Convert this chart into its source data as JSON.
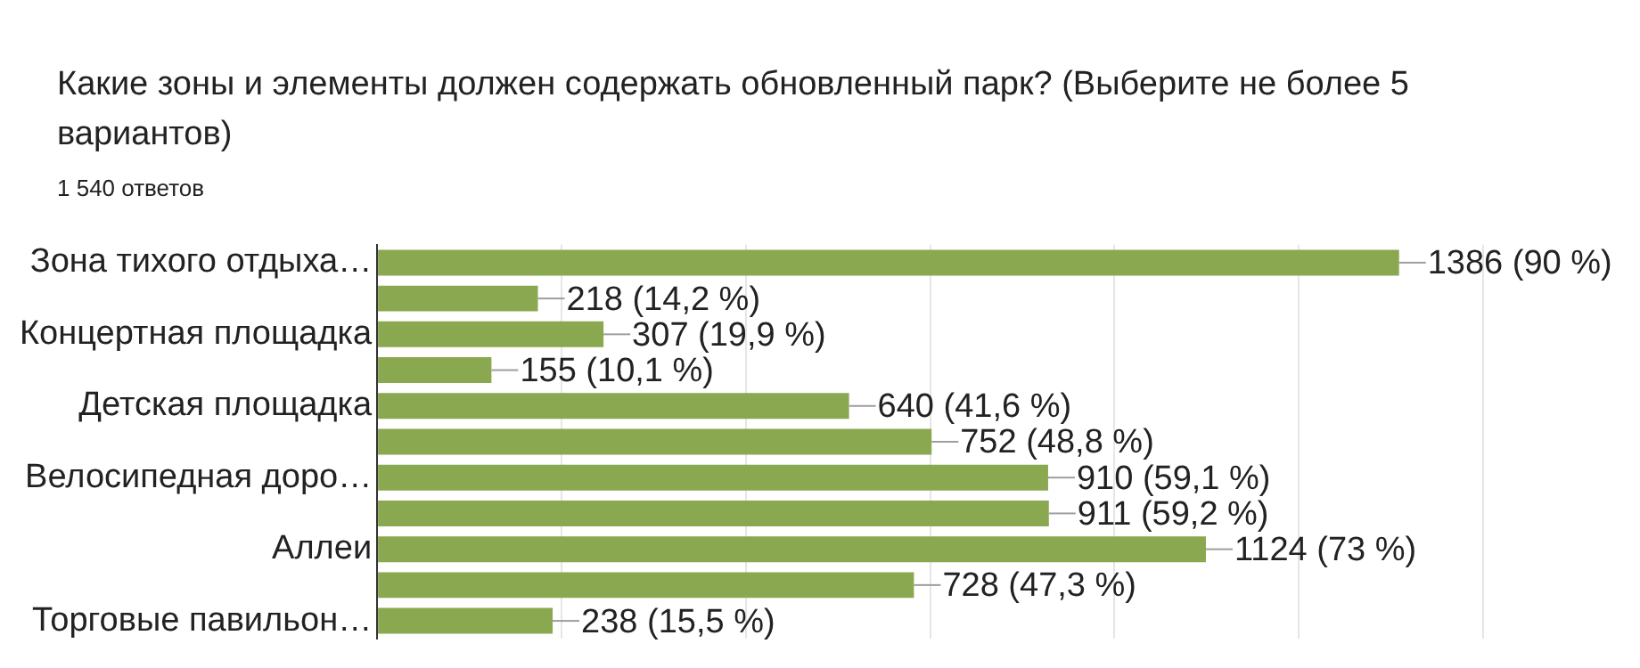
{
  "chart_data": {
    "type": "bar",
    "orientation": "horizontal",
    "title": "Какие зоны и элементы должен содержать обновленный парк? (Выберите не более 5 вариантов)",
    "subtitle": "1 540 ответов",
    "categories": [
      "Зона тихого отдыха…",
      null,
      "Концертная площадка",
      null,
      "Детская площадка",
      null,
      "Велосипедная доро…",
      null,
      "Аллеи",
      null,
      "Торговые павильон…"
    ],
    "values": [
      1386,
      218,
      307,
      155,
      640,
      752,
      910,
      911,
      1124,
      728,
      238
    ],
    "value_labels": [
      "1386 (90 %)",
      "218 (14,2 %)",
      "307 (19,9 %)",
      "155 (10,1 %)",
      "640 (41,6 %)",
      "752 (48,8 %)",
      "910 (59,1 %)",
      "911 (59,2 %)",
      "1124 (73 %)",
      "728 (47,3 %)",
      "238 (15,5 %)"
    ],
    "color": "#8aa84f",
    "xlim": [
      0,
      1500
    ],
    "xticks": [
      {
        "value": 0,
        "label": null
      },
      {
        "value": 250,
        "label": null
      },
      {
        "value": 500,
        "label": null
      },
      {
        "value": 750,
        "label": null
      },
      {
        "value": 1000,
        "label": null
      },
      {
        "value": 1250,
        "label": null
      },
      {
        "value": 1500,
        "label": null
      }
    ],
    "tick_labels": "y",
    "grid": "x",
    "legend": false
  }
}
